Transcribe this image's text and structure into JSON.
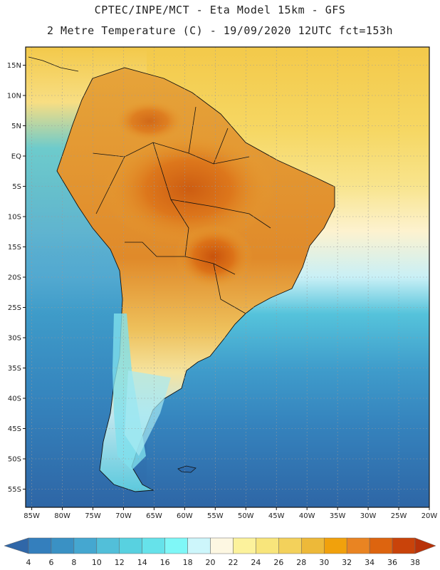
{
  "header": {
    "title_line1": "CPTEC/INPE/MCT -  Eta Model 15km - GFS",
    "title_line2": "2 Metre Temperature (C) - 19/09/2020 12UTC fct=153h"
  },
  "map": {
    "lat_range": [
      -58,
      18
    ],
    "lon_range": [
      -86,
      -20
    ],
    "lat_ticks": [
      {
        "value": 15,
        "label": "15N"
      },
      {
        "value": 10,
        "label": "10N"
      },
      {
        "value": 5,
        "label": "5N"
      },
      {
        "value": 0,
        "label": "EQ"
      },
      {
        "value": -5,
        "label": "5S"
      },
      {
        "value": -10,
        "label": "10S"
      },
      {
        "value": -15,
        "label": "15S"
      },
      {
        "value": -20,
        "label": "20S"
      },
      {
        "value": -25,
        "label": "25S"
      },
      {
        "value": -30,
        "label": "30S"
      },
      {
        "value": -35,
        "label": "35S"
      },
      {
        "value": -40,
        "label": "40S"
      },
      {
        "value": -45,
        "label": "45S"
      },
      {
        "value": -50,
        "label": "50S"
      },
      {
        "value": -55,
        "label": "55S"
      }
    ],
    "lon_ticks": [
      {
        "value": -85,
        "label": "85W"
      },
      {
        "value": -80,
        "label": "80W"
      },
      {
        "value": -75,
        "label": "75W"
      },
      {
        "value": -70,
        "label": "70W"
      },
      {
        "value": -65,
        "label": "65W"
      },
      {
        "value": -60,
        "label": "60W"
      },
      {
        "value": -55,
        "label": "55W"
      },
      {
        "value": -50,
        "label": "50W"
      },
      {
        "value": -45,
        "label": "45W"
      },
      {
        "value": -40,
        "label": "40W"
      },
      {
        "value": -35,
        "label": "35W"
      },
      {
        "value": -30,
        "label": "30W"
      },
      {
        "value": -25,
        "label": "25W"
      },
      {
        "value": -20,
        "label": "20W"
      }
    ],
    "colors": {
      "ocean_warm": "#f4d35a",
      "ocean_cool": "#3a82b8",
      "land": "#e8a93a",
      "border": "#111111",
      "grid": "#9a9a9a"
    }
  },
  "colorbar": {
    "labels": [
      "4",
      "6",
      "8",
      "10",
      "12",
      "14",
      "16",
      "18",
      "20",
      "22",
      "24",
      "26",
      "28",
      "30",
      "32",
      "34",
      "36",
      "38"
    ],
    "colors": [
      "#3067a8",
      "#347fbd",
      "#3a91c4",
      "#45a7d0",
      "#52bfd9",
      "#58d1e0",
      "#66e2ea",
      "#7ff7f7",
      "#cdf6fb",
      "#fdf7e2",
      "#fcf29c",
      "#f8e57b",
      "#f3d15b",
      "#edb939",
      "#f1a10c",
      "#e98422",
      "#dd640f",
      "#c9430a",
      "#b83209"
    ]
  }
}
